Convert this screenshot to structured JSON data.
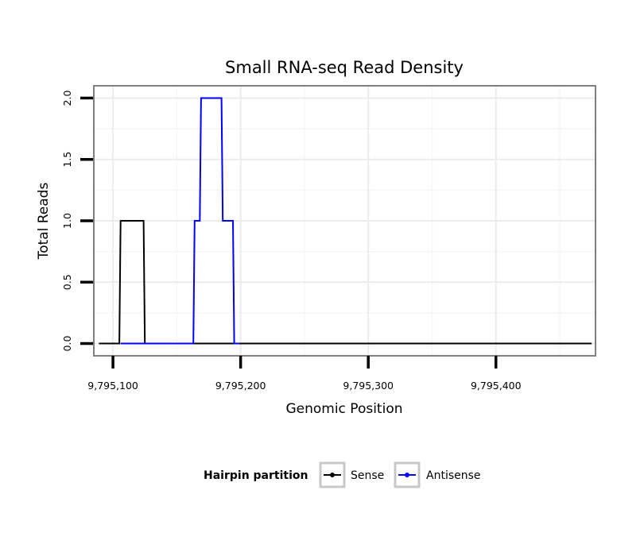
{
  "chart_data": {
    "type": "line",
    "title": "Small RNA-seq Read Density",
    "xlabel": "Genomic Position",
    "ylabel": "Total Reads",
    "xlim": [
      9795085,
      9795478
    ],
    "ylim": [
      -0.1,
      2.1
    ],
    "x_ticks": [
      9795100,
      9795200,
      9795300,
      9795400
    ],
    "x_tick_labels": [
      "9,795,100",
      "9,795,200",
      "9,795,300",
      "9,795,400"
    ],
    "y_ticks": [
      0,
      0.5,
      1,
      1.5,
      2
    ],
    "y_tick_labels": [
      "0.0",
      "0.5",
      "1.0",
      "1.5",
      "2.0"
    ],
    "grid": true,
    "legend": {
      "title": "Hairpin partition",
      "position": "bottom",
      "entries": [
        "Sense",
        "Antisense"
      ]
    },
    "series": [
      {
        "name": "Sense",
        "color": "#000000",
        "x": [
          9795089,
          9795105,
          9795106,
          9795124,
          9795125,
          9795475
        ],
        "y": [
          0,
          0,
          1,
          1,
          0,
          0
        ]
      },
      {
        "name": "Antisense",
        "color": "#0000ff",
        "x": [
          9795106,
          9795124,
          9795125,
          9795163,
          9795164,
          9795168,
          9795169,
          9795185,
          9795186,
          9795194,
          9795195,
          9795199
        ],
        "y": [
          0,
          0,
          0,
          0,
          1,
          1,
          2,
          2,
          1,
          1,
          0,
          0
        ]
      }
    ]
  }
}
